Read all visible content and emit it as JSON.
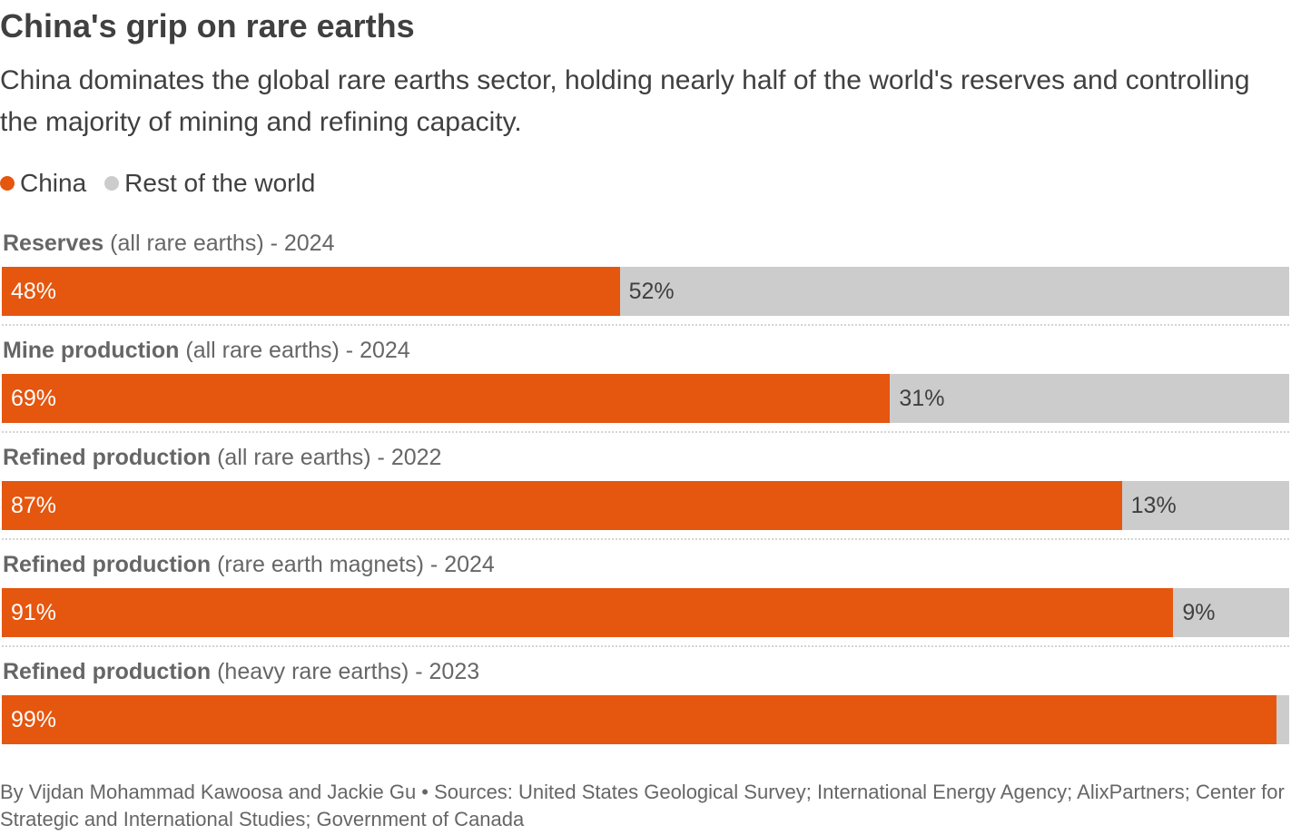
{
  "header": {
    "title": "China's grip on rare earths",
    "subtitle": "China dominates the global rare earths sector, holding nearly half of the world's reserves and controlling the majority of mining and refining capacity."
  },
  "colors": {
    "china": "#e5560f",
    "rest": "#cccccc"
  },
  "chart_data": {
    "type": "bar",
    "orientation": "horizontal-stacked-100",
    "title": "China's grip on rare earths",
    "legend": {
      "placement": "top-left",
      "entries": [
        "China",
        "Rest of the world"
      ]
    },
    "categories": [
      {
        "bold": "Reserves",
        "rest": " (all rare earths) - 2024"
      },
      {
        "bold": "Mine production",
        "rest": " (all rare earths) - 2024"
      },
      {
        "bold": "Refined production",
        "rest": " (all rare earths) - 2022"
      },
      {
        "bold": "Refined production",
        "rest": " (rare earth magnets) - 2024"
      },
      {
        "bold": "Refined production",
        "rest": " (heavy rare earths) - 2023"
      }
    ],
    "series": [
      {
        "name": "China",
        "values": [
          48,
          69,
          87,
          91,
          99
        ],
        "labels": [
          "48%",
          "69%",
          "87%",
          "91%",
          "99%"
        ]
      },
      {
        "name": "Rest of the world",
        "values": [
          52,
          31,
          13,
          9,
          1
        ],
        "labels": [
          "52%",
          "31%",
          "13%",
          "9%",
          ""
        ]
      }
    ],
    "xlim": [
      0,
      100
    ],
    "grid": false
  },
  "footer": {
    "text": "By Vijdan Mohammad Kawoosa and Jackie Gu • Sources: United States Geological Survey; International Energy Agency; AlixPartners; Center for Strategic and International Studies; Government of Canada"
  }
}
